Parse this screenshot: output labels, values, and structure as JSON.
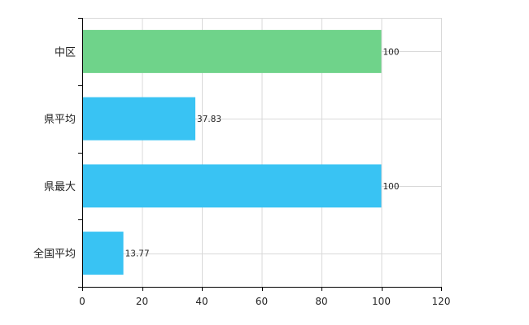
{
  "chart_data": {
    "type": "bar",
    "orientation": "horizontal",
    "categories": [
      "中区",
      "県平均",
      "県最大",
      "全国平均"
    ],
    "values": [
      100,
      37.83,
      100,
      13.77
    ],
    "value_labels": [
      "100",
      "37.83",
      "100",
      "13.77"
    ],
    "bar_colors": [
      "#6fd38a",
      "#39c3f3",
      "#39c3f3",
      "#39c3f3"
    ],
    "xlim": [
      0,
      120
    ],
    "xticks": [
      0,
      20,
      40,
      60,
      80,
      100,
      120
    ],
    "x_tick_labels": [
      "0",
      "20",
      "40",
      "60",
      "80",
      "100",
      "120"
    ],
    "grid": true,
    "title": "",
    "xlabel": "",
    "ylabel": ""
  }
}
